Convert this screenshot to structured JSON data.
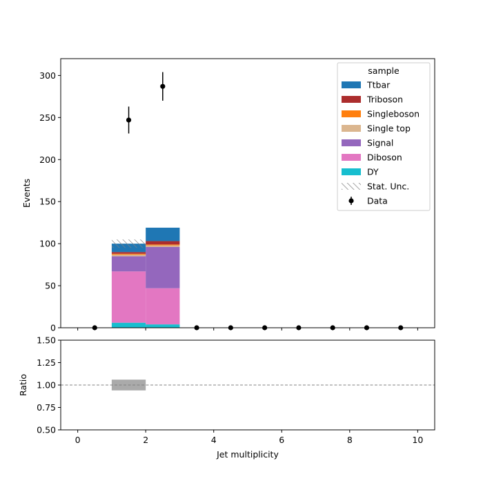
{
  "chart_data": [
    {
      "type": "bar",
      "stacked": true,
      "x_edges": [
        0,
        1,
        2,
        3,
        4,
        5,
        6,
        7,
        8,
        9,
        10
      ],
      "xlim": [
        -0.5,
        10.5
      ],
      "ylim": [
        0,
        320
      ],
      "yticks": [
        0,
        50,
        100,
        150,
        200,
        250,
        300
      ],
      "ylabel": "Events",
      "legend_title": "sample",
      "legend_position": "top-right",
      "series": [
        {
          "name": "DY",
          "color": "#17becf",
          "values": [
            0,
            6,
            4,
            0,
            0,
            0,
            0,
            0,
            0,
            0
          ]
        },
        {
          "name": "Diboson",
          "color": "#e377c2",
          "values": [
            0,
            61,
            43,
            0,
            0,
            0,
            0,
            0,
            0,
            0
          ]
        },
        {
          "name": "Signal",
          "color": "#9467bd",
          "values": [
            0,
            18,
            49,
            0,
            0,
            0,
            0,
            0,
            0,
            0
          ]
        },
        {
          "name": "Single top",
          "color": "#dbb68f",
          "values": [
            0,
            2,
            2,
            0,
            0,
            0,
            0,
            0,
            0,
            0
          ]
        },
        {
          "name": "Singleboson",
          "color": "#ff7f0e",
          "values": [
            0,
            1,
            1,
            0,
            0,
            0,
            0,
            0,
            0,
            0
          ]
        },
        {
          "name": "Triboson",
          "color": "#ac2d2d",
          "values": [
            0,
            2,
            4,
            0,
            0,
            0,
            0,
            0,
            0,
            0
          ]
        },
        {
          "name": "Ttbar",
          "color": "#1f77b4",
          "values": [
            0,
            10,
            16,
            0,
            0,
            0,
            0,
            0,
            0,
            0
          ]
        }
      ],
      "stat_unc": {
        "name": "Stat. Unc.",
        "values": [
          0,
          5,
          0,
          0,
          0,
          0,
          0,
          0,
          0,
          0
        ]
      },
      "data_points": {
        "name": "Data",
        "x": [
          0.5,
          1.5,
          2.5,
          3.5,
          4.5,
          5.5,
          6.5,
          7.5,
          8.5,
          9.5
        ],
        "y": [
          0,
          247,
          287,
          0,
          0,
          0,
          0,
          0,
          0,
          0
        ],
        "err": [
          0,
          16,
          17,
          0,
          0,
          0,
          0,
          0,
          0,
          0
        ]
      }
    },
    {
      "type": "line",
      "xlabel": "Jet multiplicity",
      "ylabel": "Ratio",
      "xlim": [
        -0.5,
        10.5
      ],
      "xticks": [
        0,
        2,
        4,
        6,
        8,
        10
      ],
      "ylim": [
        0.5,
        1.5
      ],
      "yticks": [
        "0.50",
        "0.75",
        "1.00",
        "1.25",
        "1.50"
      ],
      "reference_line": 1.0,
      "unc_band": {
        "x_range": [
          1,
          2
        ],
        "y_range": [
          0.94,
          1.06
        ],
        "color": "#aaaaaa"
      }
    }
  ]
}
